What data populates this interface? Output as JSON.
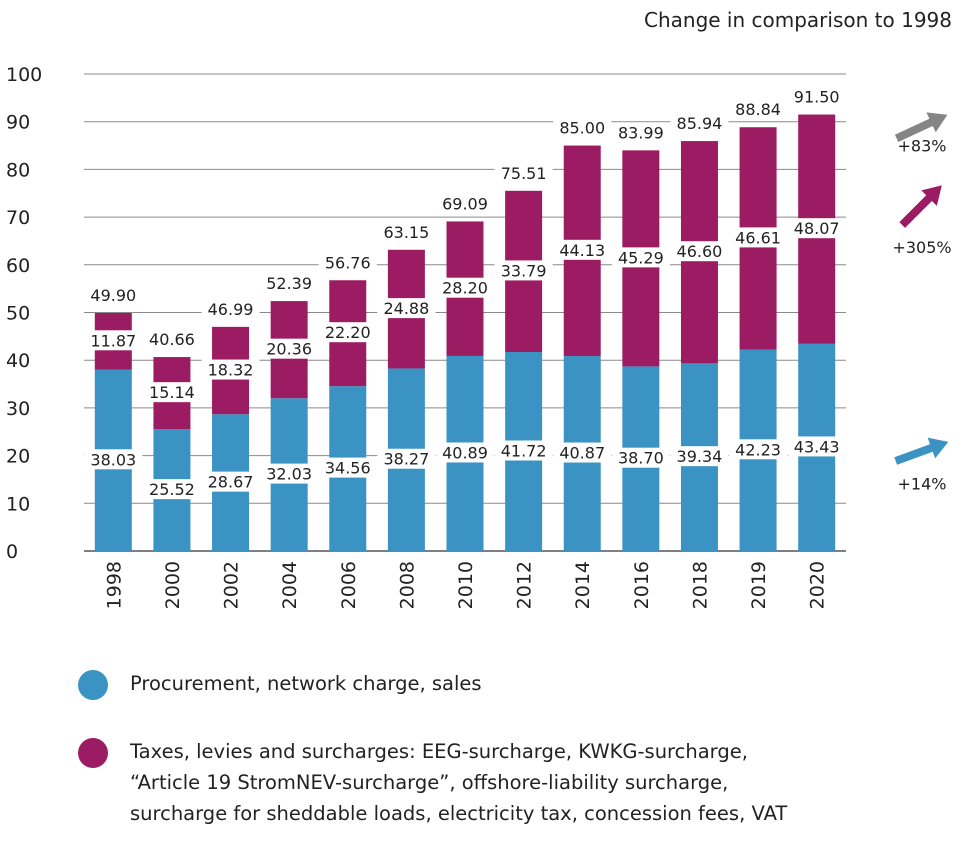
{
  "chart_data": {
    "type": "bar",
    "stacked": true,
    "note": "Change in comparison to 1998",
    "categories": [
      "1998",
      "2000",
      "2002",
      "2004",
      "2006",
      "2008",
      "2010",
      "2012",
      "2014",
      "2016",
      "2018",
      "2019",
      "2020"
    ],
    "ylim": [
      0,
      100
    ],
    "yticks": [
      "0",
      "10",
      "20",
      "30",
      "40",
      "50",
      "60",
      "70",
      "80",
      "90",
      "100"
    ],
    "grid": true,
    "series": [
      {
        "name": "Procurement, network charge, sales",
        "color": "#3b93c3",
        "values": [
          38.03,
          25.52,
          28.67,
          32.03,
          34.56,
          38.27,
          40.89,
          41.72,
          40.87,
          38.7,
          39.34,
          42.23,
          43.43
        ],
        "labels": [
          "38.03",
          "25.52",
          "28.67",
          "32.03",
          "34.56",
          "38.27",
          "40.89",
          "41.72",
          "40.87",
          "38.70",
          "39.34",
          "42.23",
          "43.43"
        ]
      },
      {
        "name": "Taxes, levies and surcharges: EEG-surcharge, KWKG-surcharge,\n“Article 19 StromNEV-surcharge”, offshore-liability surcharge,\nsurcharge for sheddable loads, electricity tax, concession fees, VAT",
        "color": "#9c1c63",
        "values": [
          11.87,
          15.14,
          18.32,
          20.36,
          22.2,
          24.88,
          28.2,
          33.79,
          44.13,
          45.29,
          46.6,
          46.61,
          48.07
        ],
        "labels": [
          "11.87",
          "15.14",
          "18.32",
          "20.36",
          "22.20",
          "24.88",
          "28.20",
          "33.79",
          "44.13",
          "45.29",
          "46.60",
          "46.61",
          "48.07"
        ]
      }
    ],
    "totals": [
      "49.90",
      "40.66",
      "46.99",
      "52.39",
      "56.76",
      "63.15",
      "69.09",
      "75.51",
      "85.00",
      "83.99",
      "85.94",
      "88.84",
      "91.50"
    ],
    "changes": [
      {
        "label": "+83%",
        "color": "#858585",
        "series": "total"
      },
      {
        "label": "+305%",
        "color": "#9c1c63",
        "series": "taxes"
      },
      {
        "label": "+14%",
        "color": "#3b93c3",
        "series": "procurement"
      }
    ]
  }
}
